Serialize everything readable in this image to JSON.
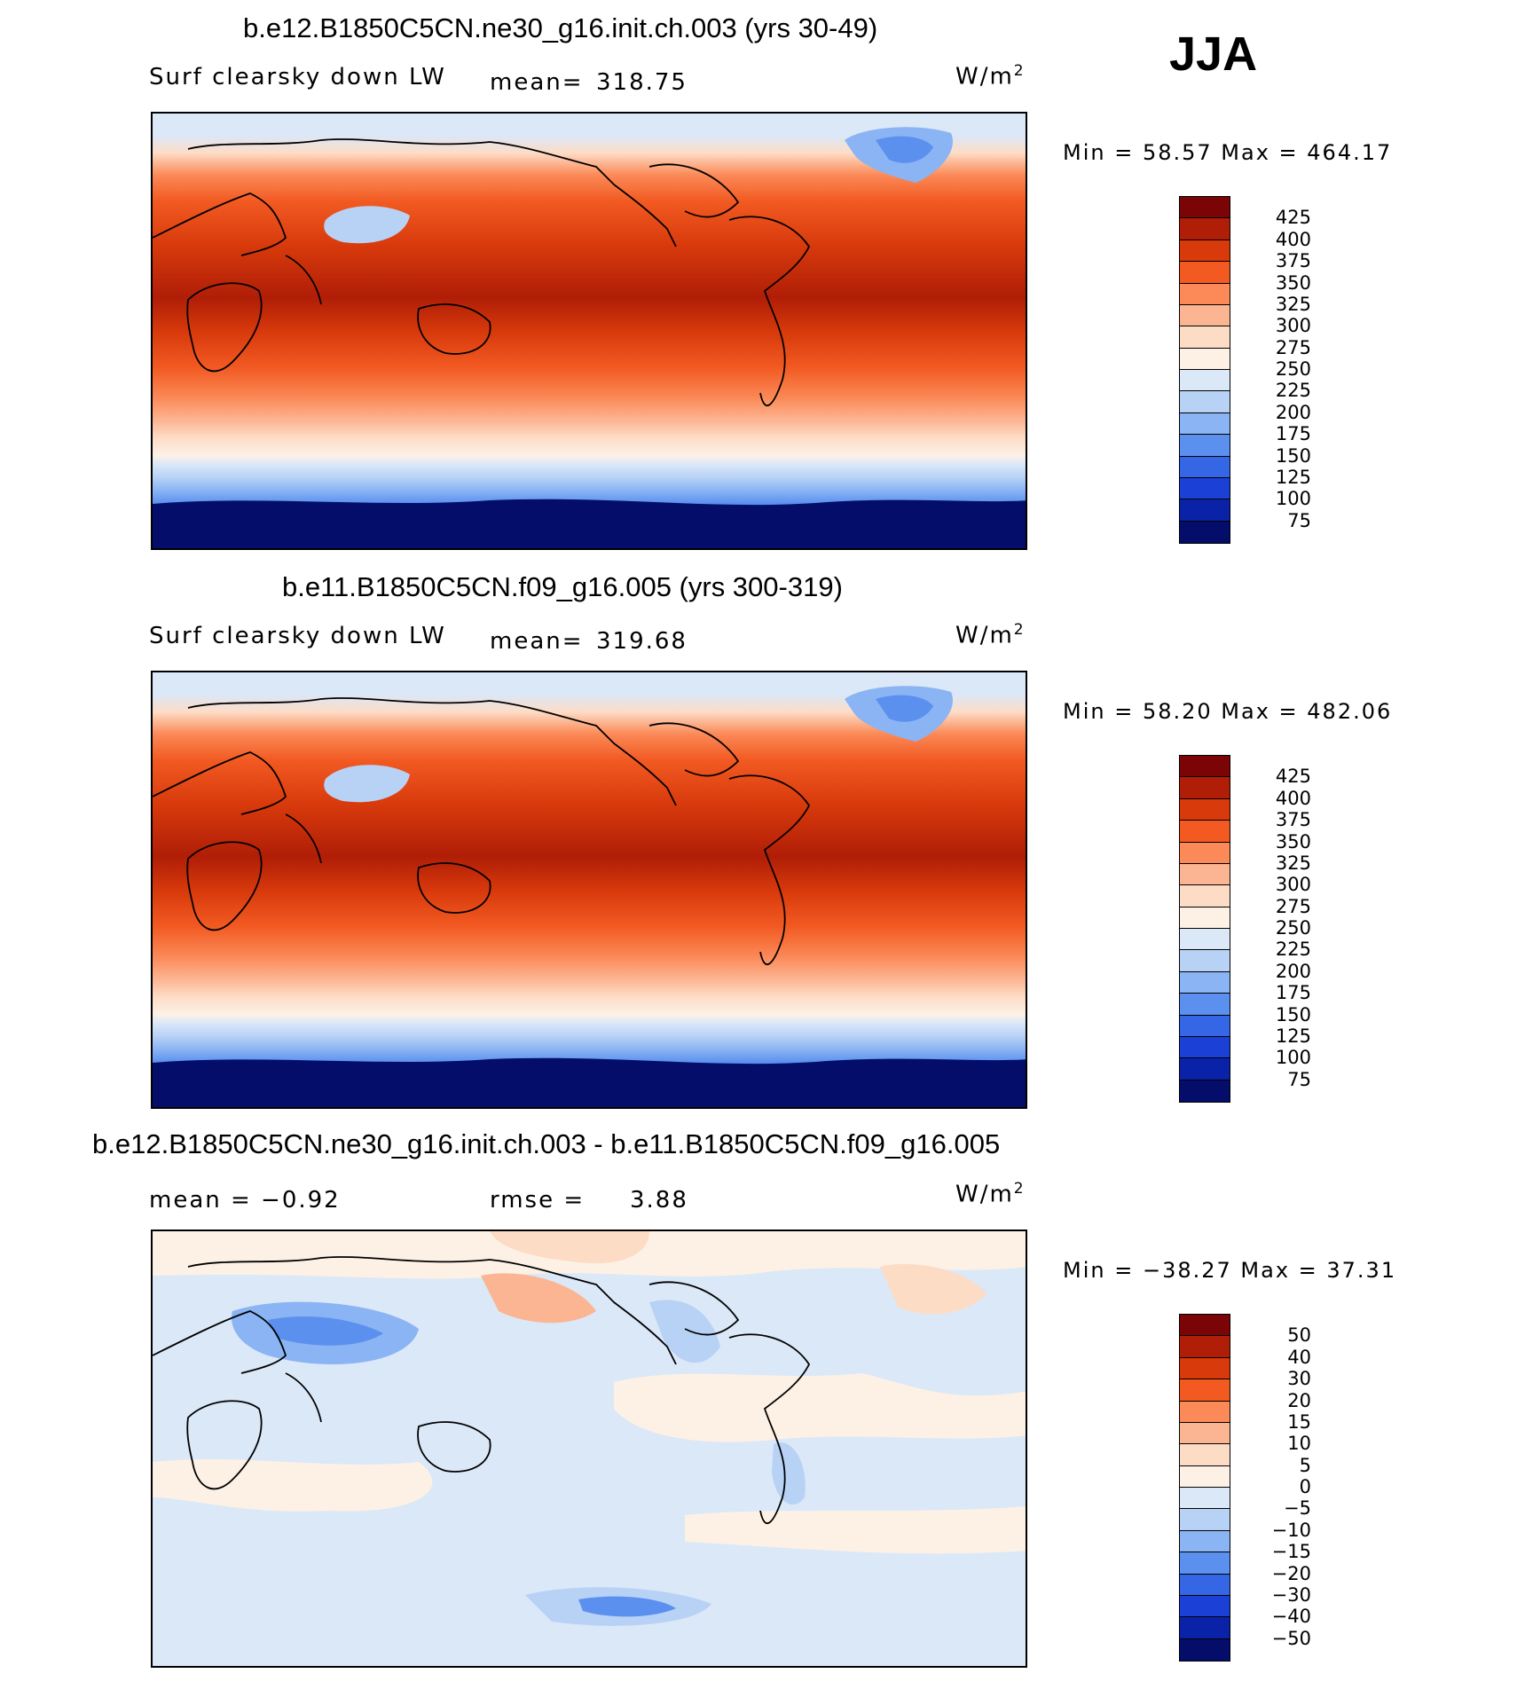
{
  "season": "JJA",
  "units_base": "W/m",
  "units_sup": "2",
  "panels": [
    {
      "id": "panel-1",
      "title": "b.e12.B1850C5CN.ne30_g16.init.ch.003 (yrs 30-49)",
      "left_label": "Surf clearsky down LW",
      "stat_label": "mean=",
      "stat_value": "318.75",
      "minmax": "Min =   58.57 Max = 464.17",
      "cbar_labels": [
        "425",
        "400",
        "375",
        "350",
        "325",
        "300",
        "275",
        "250",
        "225",
        "200",
        "175",
        "150",
        "125",
        "100",
        "75"
      ],
      "cbar_colors": [
        "#7a0406",
        "#b01e07",
        "#d83a0c",
        "#f25a22",
        "#fb8a58",
        "#fcb592",
        "#fddcc6",
        "#fdf1e6",
        "#dbe8f8",
        "#b8d2f6",
        "#8ab4f3",
        "#5b90ef",
        "#3566e6",
        "#1a40d6",
        "#0a22a8",
        "#040e6a"
      ],
      "range": "abs"
    },
    {
      "id": "panel-2",
      "title": "b.e11.B1850C5CN.f09_g16.005 (yrs 300-319)",
      "left_label": "Surf clearsky down LW",
      "stat_label": "mean=",
      "stat_value": "319.68",
      "minmax": "Min =   58.20 Max = 482.06",
      "cbar_labels": [
        "425",
        "400",
        "375",
        "350",
        "325",
        "300",
        "275",
        "250",
        "225",
        "200",
        "175",
        "150",
        "125",
        "100",
        "75"
      ],
      "cbar_colors": [
        "#7a0406",
        "#b01e07",
        "#d83a0c",
        "#f25a22",
        "#fb8a58",
        "#fcb592",
        "#fddcc6",
        "#fdf1e6",
        "#dbe8f8",
        "#b8d2f6",
        "#8ab4f3",
        "#5b90ef",
        "#3566e6",
        "#1a40d6",
        "#0a22a8",
        "#040e6a"
      ],
      "range": "abs"
    },
    {
      "id": "panel-3",
      "title": "b.e12.B1850C5CN.ne30_g16.init.ch.003 - b.e11.B1850C5CN.f09_g16.005",
      "left_label": "mean =   −0.92",
      "stat_label": "rmse =",
      "stat_value": "3.88",
      "minmax": "Min = −38.27 Max =   37.31",
      "cbar_labels": [
        "50",
        "40",
        "30",
        "20",
        "15",
        "10",
        "5",
        "0",
        "−5",
        "−10",
        "−15",
        "−20",
        "−30",
        "−40",
        "−50"
      ],
      "cbar_colors": [
        "#7a0406",
        "#b01e07",
        "#d83a0c",
        "#f25a22",
        "#fb8a58",
        "#fcb592",
        "#fddcc6",
        "#fdf1e6",
        "#dbe8f8",
        "#b8d2f6",
        "#8ab4f3",
        "#5b90ef",
        "#3566e6",
        "#1a40d6",
        "#0a22a8",
        "#040e6a"
      ],
      "range": "diff"
    }
  ]
}
